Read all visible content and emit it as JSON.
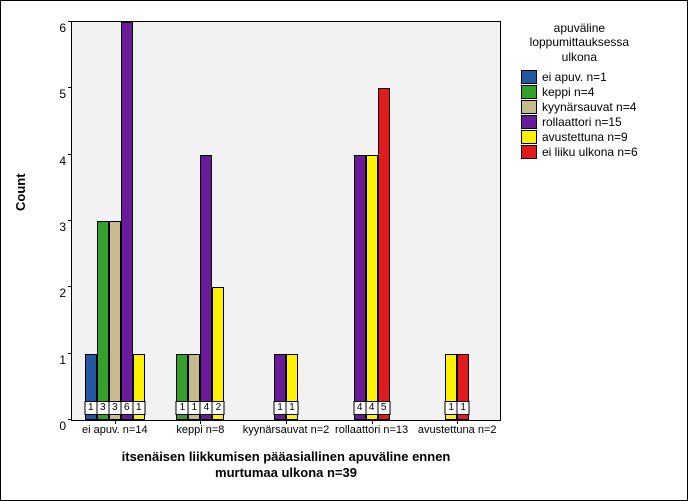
{
  "chart": {
    "type": "grouped-bar",
    "plot_bg": "#f2f2f2",
    "ylabel": "Count",
    "ylim": [
      0,
      6
    ],
    "ytick_step": 1,
    "xlabel": "itsenäisen liikkumisen pääasiallinen apuväline ennen\nmurtumaa ulkona n=39",
    "legend_title": "apuväline\nloppumittauksessa\nulkona",
    "series": [
      {
        "key": "s0",
        "label": "ei apuv. n=1",
        "color": "#2356a3"
      },
      {
        "key": "s1",
        "label": "keppi n=4",
        "color": "#33a02c"
      },
      {
        "key": "s2",
        "label": "kyynärsauvat n=4",
        "color": "#c6bb8d"
      },
      {
        "key": "s3",
        "label": "rollaattori n=15",
        "color": "#6a1b9a"
      },
      {
        "key": "s4",
        "label": "avustettuna n=9",
        "color": "#fff200"
      },
      {
        "key": "s5",
        "label": "ei liiku ulkona n=6",
        "color": "#e31a1c"
      }
    ],
    "categories": [
      {
        "label": "ei apuv. n=14",
        "values": {
          "s0": 1,
          "s1": 3,
          "s2": 3,
          "s3": 6,
          "s4": 1
        }
      },
      {
        "label": "keppi n=8",
        "values": {
          "s1": 1,
          "s2": 1,
          "s3": 4,
          "s4": 2
        }
      },
      {
        "label": "kyynärsauvat n=2",
        "values": {
          "s3": 1,
          "s4": 1
        }
      },
      {
        "label": "rollaattori n=13",
        "values": {
          "s3": 4,
          "s4": 4,
          "s5": 5
        }
      },
      {
        "label": "avustettuna n=2",
        "values": {
          "s4": 1,
          "s5": 1
        }
      }
    ]
  }
}
